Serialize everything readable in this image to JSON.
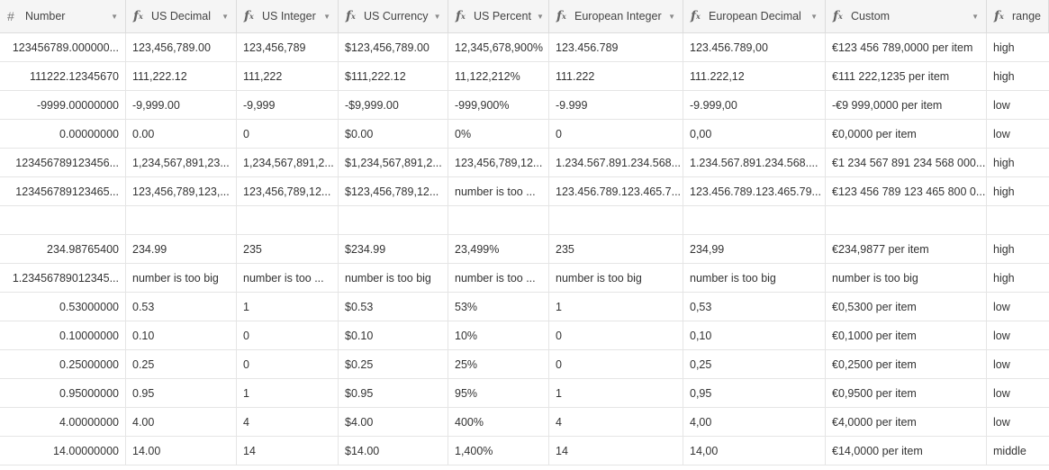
{
  "columns": [
    {
      "label": "Number",
      "icon": "hash-icon"
    },
    {
      "label": "US Decimal",
      "icon": "formula-icon"
    },
    {
      "label": "US Integer",
      "icon": "formula-icon"
    },
    {
      "label": "US Currency",
      "icon": "formula-icon"
    },
    {
      "label": "US Percent",
      "icon": "formula-icon"
    },
    {
      "label": "European Integer",
      "icon": "formula-icon"
    },
    {
      "label": "European Decimal",
      "icon": "formula-icon"
    },
    {
      "label": "Custom",
      "icon": "formula-icon"
    },
    {
      "label": "range",
      "icon": "formula-icon"
    }
  ],
  "rows": [
    [
      "123456789.000000...",
      "123,456,789.00",
      "123,456,789",
      "$123,456,789.00",
      "12,345,678,900%",
      "123.456.789",
      "123.456.789,00",
      "€123 456 789,0000 per item",
      "high"
    ],
    [
      "111222.12345670",
      "111,222.12",
      "111,222",
      "$111,222.12",
      "11,122,212%",
      "111.222",
      "111.222,12",
      "€111 222,1235 per item",
      "high"
    ],
    [
      "-9999.00000000",
      "-9,999.00",
      "-9,999",
      "-$9,999.00",
      "-999,900%",
      "-9.999",
      "-9.999,00",
      "-€9 999,0000 per item",
      "low"
    ],
    [
      "0.00000000",
      "0.00",
      "0",
      "$0.00",
      "0%",
      "0",
      "0,00",
      "€0,0000 per item",
      "low"
    ],
    [
      "123456789123456...",
      "1,234,567,891,23...",
      "1,234,567,891,2...",
      "$1,234,567,891,2...",
      "123,456,789,12...",
      "1.234.567.891.234.568...",
      "1.234.567.891.234.568....",
      "€1 234 567 891 234 568 000...",
      "high"
    ],
    [
      "123456789123465...",
      "123,456,789,123,...",
      "123,456,789,12...",
      "$123,456,789,12...",
      "number is too ...",
      "123.456.789.123.465.7...",
      "123.456.789.123.465.79...",
      "€123 456 789 123 465 800 0...",
      "high"
    ],
    [
      "",
      "",
      "",
      "",
      "",
      "",
      "",
      "",
      ""
    ],
    [
      "234.98765400",
      "234.99",
      "235",
      "$234.99",
      "23,499%",
      "235",
      "234,99",
      "€234,9877 per item",
      "high"
    ],
    [
      "1.23456789012345...",
      "number is too big",
      "number is too ...",
      "number is too big",
      "number is too ...",
      "number is too big",
      "number is too big",
      "number is too big",
      "high"
    ],
    [
      "0.53000000",
      "0.53",
      "1",
      "$0.53",
      "53%",
      "1",
      "0,53",
      "€0,5300 per item",
      "low"
    ],
    [
      "0.10000000",
      "0.10",
      "0",
      "$0.10",
      "10%",
      "0",
      "0,10",
      "€0,1000 per item",
      "low"
    ],
    [
      "0.25000000",
      "0.25",
      "0",
      "$0.25",
      "25%",
      "0",
      "0,25",
      "€0,2500 per item",
      "low"
    ],
    [
      "0.95000000",
      "0.95",
      "1",
      "$0.95",
      "95%",
      "1",
      "0,95",
      "€0,9500 per item",
      "low"
    ],
    [
      "4.00000000",
      "4.00",
      "4",
      "$4.00",
      "400%",
      "4",
      "4,00",
      "€4,0000 per item",
      "low"
    ],
    [
      "14.00000000",
      "14.00",
      "14",
      "$14.00",
      "1,400%",
      "14",
      "14,00",
      "€14,0000 per item",
      "middle"
    ]
  ]
}
